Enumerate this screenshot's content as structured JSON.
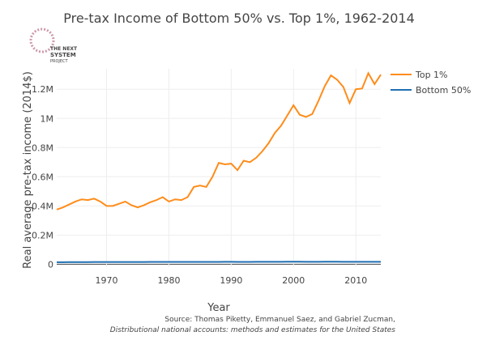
{
  "chart_data": {
    "type": "line",
    "title": "Pre-tax Income of Bottom 50% vs. Top 1%, 1962-2014",
    "xlabel": "Year",
    "ylabel": "Real average pre-tax income (2014$)",
    "logo": [
      "THE NEXT",
      "SYSTEM",
      "PROJECT"
    ],
    "source": [
      "Source: Thomas Piketty, Emmanuel Saez, and Gabriel Zucman,",
      "Distributional national accounts: methods and estimates for the United States"
    ],
    "x": [
      1962,
      1963,
      1964,
      1965,
      1966,
      1967,
      1968,
      1969,
      1970,
      1971,
      1972,
      1973,
      1974,
      1975,
      1976,
      1977,
      1978,
      1979,
      1980,
      1981,
      1982,
      1983,
      1984,
      1985,
      1986,
      1987,
      1988,
      1989,
      1990,
      1991,
      1992,
      1993,
      1994,
      1995,
      1996,
      1997,
      1998,
      1999,
      2000,
      2001,
      2002,
      2003,
      2004,
      2005,
      2006,
      2007,
      2008,
      2009,
      2010,
      2011,
      2012,
      2013,
      2014
    ],
    "series": [
      {
        "name": "Top 1%",
        "color": "#ff8c1a",
        "values": [
          375000,
          390000,
          410000,
          430000,
          445000,
          440000,
          450000,
          430000,
          400000,
          400000,
          415000,
          430000,
          405000,
          390000,
          405000,
          425000,
          440000,
          460000,
          430000,
          445000,
          440000,
          460000,
          530000,
          540000,
          530000,
          600000,
          695000,
          685000,
          690000,
          645000,
          710000,
          700000,
          730000,
          775000,
          830000,
          900000,
          950000,
          1020000,
          1090000,
          1025000,
          1010000,
          1030000,
          1120000,
          1220000,
          1295000,
          1265000,
          1215000,
          1105000,
          1200000,
          1205000,
          1310000,
          1235000,
          1300000
        ]
      },
      {
        "name": "Bottom 50%",
        "color": "#1f6fb4",
        "values": [
          14000,
          14200,
          14400,
          14600,
          14800,
          15000,
          15200,
          15300,
          15300,
          15400,
          15500,
          15700,
          15600,
          15500,
          15600,
          15800,
          16000,
          16200,
          16000,
          15900,
          15800,
          15800,
          16000,
          16100,
          16200,
          16300,
          16400,
          16500,
          16500,
          16300,
          16400,
          16400,
          16500,
          16600,
          16700,
          16900,
          17100,
          17300,
          17500,
          17300,
          17100,
          17000,
          17100,
          17200,
          17300,
          17300,
          17100,
          16800,
          16700,
          16700,
          16800,
          16800,
          16900
        ]
      }
    ],
    "xlim": [
      1962,
      2014
    ],
    "xticks": [
      1970,
      1980,
      1990,
      2000,
      2010
    ],
    "ylim": [
      -20000,
      1340000
    ],
    "yticks": [
      0,
      {
        "value": 200000,
        "label": "0.2M"
      },
      {
        "value": 400000,
        "label": "0.4M"
      },
      {
        "value": 600000,
        "label": "0.6M"
      },
      {
        "value": 800000,
        "label": "0.8M"
      },
      {
        "value": 1000000,
        "label": "1M"
      },
      {
        "value": 1200000,
        "label": "1.2M"
      }
    ],
    "grid": true,
    "legend": "right"
  }
}
